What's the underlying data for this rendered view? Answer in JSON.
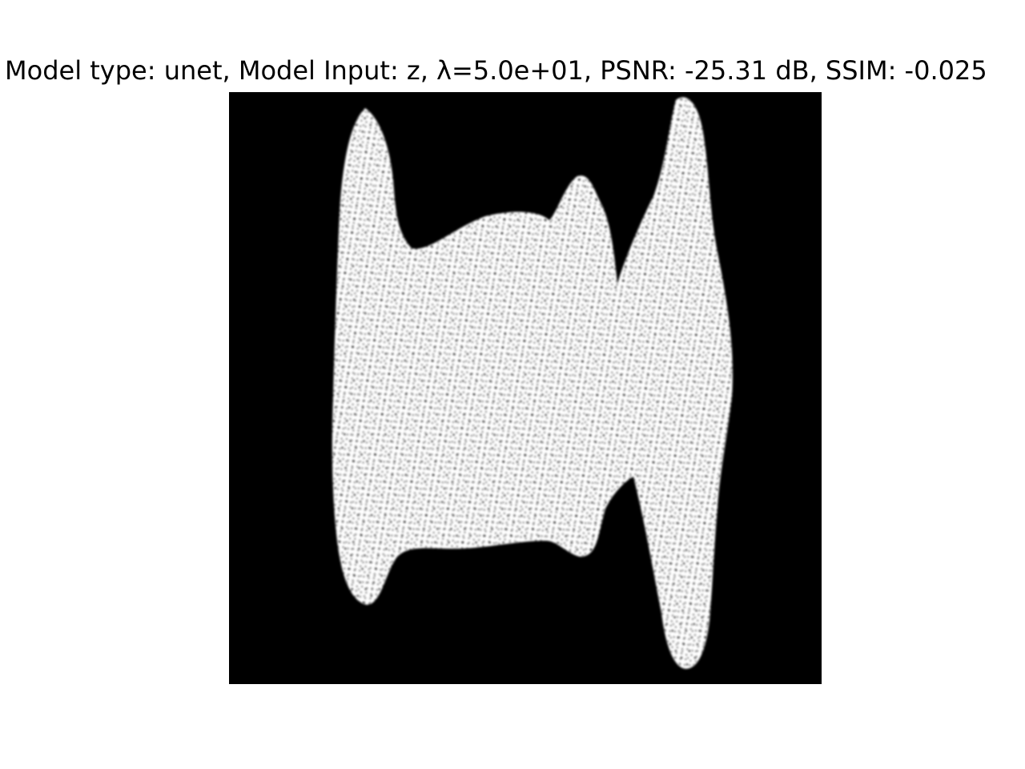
{
  "figure": {
    "title": "Model type: unet, Model Input: z, λ=5.0e+01, PSNR: -25.31 dB, SSIM: -0.025"
  },
  "image": {
    "background_color": "#000000",
    "foreground_color": "#ffffff",
    "noise_color": "#000000",
    "description_icon": "noisy-shape-image"
  }
}
